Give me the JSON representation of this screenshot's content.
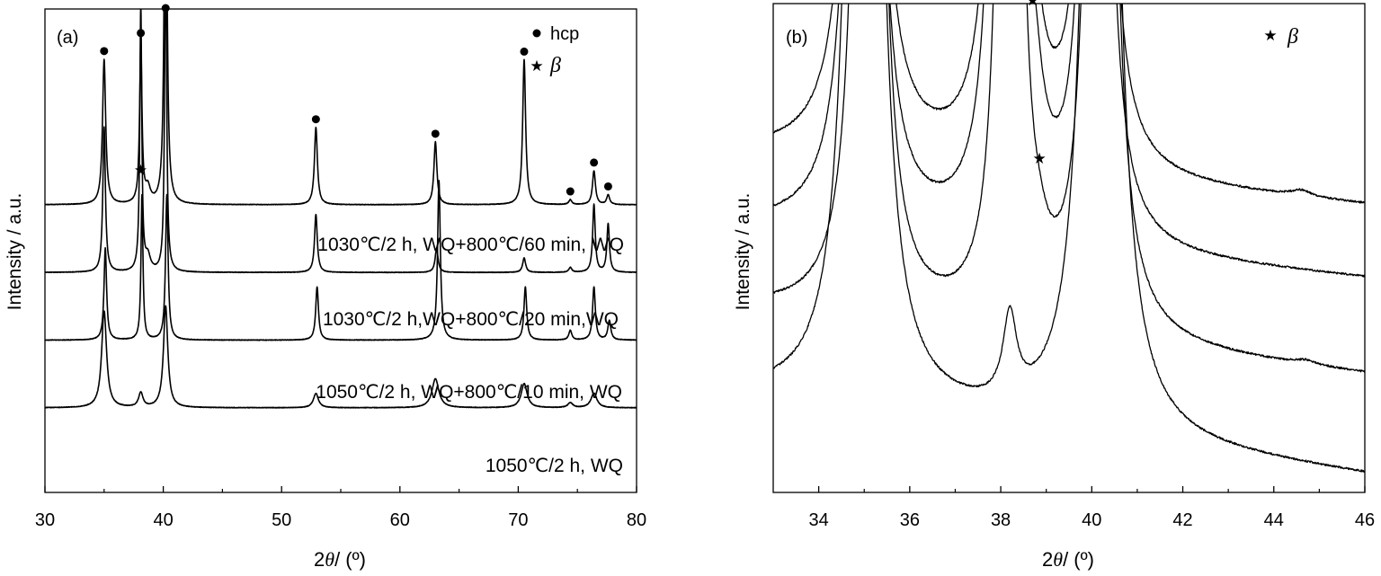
{
  "chart_data": [
    {
      "type": "line",
      "panel_label": "(a)",
      "xlabel": {
        "prefix": "2",
        "theta": "θ",
        "suffix": "/ (º)"
      },
      "ylabel": "Intensity / a.u.",
      "xlim": [
        30,
        80
      ],
      "xticks": [
        "30",
        "40",
        "50",
        "60",
        "70",
        "80"
      ],
      "legend": [
        {
          "marker": "●",
          "text": "hcp"
        },
        {
          "marker": "★",
          "text": "β"
        }
      ],
      "series": [
        {
          "name": "1030℃/2 h, WQ+800℃/60 min, WQ",
          "baseline": 0.405,
          "peaks": [
            {
              "x": 35.0,
              "h": 0.3,
              "w": 0.16,
              "marker": "hcp"
            },
            {
              "x": 38.1,
              "h": 0.33,
              "w": 0.12,
              "marker": "hcp"
            },
            {
              "x": 38.7,
              "h": 0.03,
              "w": 0.25,
              "marker": "beta"
            },
            {
              "x": 40.2,
              "h": 1.0,
              "w": 0.12,
              "marker": "hcp"
            },
            {
              "x": 52.9,
              "h": 0.16,
              "w": 0.15,
              "marker": "hcp"
            },
            {
              "x": 63.0,
              "h": 0.13,
              "w": 0.15,
              "marker": "hcp"
            },
            {
              "x": 70.5,
              "h": 0.3,
              "w": 0.15,
              "marker": "hcp"
            },
            {
              "x": 74.4,
              "h": 0.01,
              "w": 0.15,
              "marker": "hcp"
            },
            {
              "x": 76.4,
              "h": 0.07,
              "w": 0.15,
              "marker": "hcp"
            },
            {
              "x": 77.6,
              "h": 0.02,
              "w": 0.15,
              "marker": "hcp"
            }
          ]
        },
        {
          "name": "1030℃/2 h,WQ+800℃/20 min,WQ",
          "baseline": 0.545,
          "peaks": [
            {
              "x": 35.0,
              "h": 0.3,
              "w": 0.13
            },
            {
              "x": 38.1,
              "h": 0.55,
              "w": 0.1
            },
            {
              "x": 38.7,
              "h": 0.03,
              "w": 0.25
            },
            {
              "x": 40.2,
              "h": 0.7,
              "w": 0.1
            },
            {
              "x": 52.9,
              "h": 0.12,
              "w": 0.14
            },
            {
              "x": 63.1,
              "h": 0.05,
              "w": 0.15
            },
            {
              "x": 70.5,
              "h": 0.03,
              "w": 0.15
            },
            {
              "x": 74.4,
              "h": 0.01,
              "w": 0.15
            },
            {
              "x": 76.4,
              "h": 0.14,
              "w": 0.13
            },
            {
              "x": 77.6,
              "h": 0.1,
              "w": 0.13
            }
          ]
        },
        {
          "name": "1050℃/2 h, WQ+800℃/10 min, WQ",
          "baseline": 0.685,
          "peaks": [
            {
              "x": 35.1,
              "h": 0.19,
              "w": 0.13
            },
            {
              "x": 38.2,
              "h": 0.3,
              "w": 0.1
            },
            {
              "x": 40.3,
              "h": 0.3,
              "w": 0.13
            },
            {
              "x": 53.0,
              "h": 0.11,
              "w": 0.14
            },
            {
              "x": 63.3,
              "h": 0.33,
              "w": 0.14
            },
            {
              "x": 70.6,
              "h": 0.11,
              "w": 0.14
            },
            {
              "x": 74.4,
              "h": 0.02,
              "w": 0.15
            },
            {
              "x": 76.4,
              "h": 0.11,
              "w": 0.14
            },
            {
              "x": 77.7,
              "h": 0.04,
              "w": 0.15
            }
          ]
        },
        {
          "name": "1050℃/2 h, WQ",
          "baseline": 0.825,
          "peaks": [
            {
              "x": 35.0,
              "h": 0.2,
              "w": 0.25
            },
            {
              "x": 38.1,
              "h": 0.03,
              "w": 0.22
            },
            {
              "x": 40.2,
              "h": 0.21,
              "w": 0.22
            },
            {
              "x": 52.9,
              "h": 0.03,
              "w": 0.25
            },
            {
              "x": 63.0,
              "h": 0.06,
              "w": 0.35
            },
            {
              "x": 70.5,
              "h": 0.05,
              "w": 0.3
            },
            {
              "x": 74.4,
              "h": 0.01,
              "w": 0.25
            },
            {
              "x": 76.4,
              "h": 0.03,
              "w": 0.3
            }
          ]
        }
      ]
    },
    {
      "type": "line",
      "panel_label": "(b)",
      "xlabel": {
        "prefix": "2",
        "theta": "θ",
        "suffix": "/ (º)"
      },
      "ylabel": "Intensity / a.u.",
      "xlim": [
        33,
        46
      ],
      "xticks": [
        "34",
        "36",
        "38",
        "40",
        "42",
        "44",
        "46"
      ],
      "legend": [
        {
          "marker": "★",
          "text": "β"
        }
      ],
      "series": [
        {
          "baseline": 0.31,
          "slope": 0.008,
          "peaks": [
            {
              "x": 35.0,
              "h": 5.0,
              "w": 0.18
            },
            {
              "x": 38.1,
              "h": 5.0,
              "w": 0.15
            },
            {
              "x": 38.7,
              "h": 0.17,
              "w": 0.25,
              "marker": "beta"
            },
            {
              "x": 40.1,
              "h": 5.0,
              "w": 0.15
            },
            {
              "x": 44.6,
              "h": 0.012,
              "w": 0.25
            }
          ]
        },
        {
          "baseline": 0.46,
          "slope": 0.008,
          "peaks": [
            {
              "x": 35.0,
              "h": 5.0,
              "w": 0.18
            },
            {
              "x": 38.1,
              "h": 5.0,
              "w": 0.15
            },
            {
              "x": 38.7,
              "h": 0.21,
              "w": 0.25,
              "marker": "beta"
            },
            {
              "x": 40.1,
              "h": 5.0,
              "w": 0.15
            }
          ]
        },
        {
          "baseline": 0.63,
          "slope": 0.01,
          "peaks": [
            {
              "x": 35.1,
              "h": 5.0,
              "w": 0.17
            },
            {
              "x": 38.2,
              "h": 5.0,
              "w": 0.14
            },
            {
              "x": 38.85,
              "h": 0.04,
              "w": 0.22,
              "marker": "beta"
            },
            {
              "x": 40.2,
              "h": 5.0,
              "w": 0.17
            },
            {
              "x": 44.7,
              "h": 0.008,
              "w": 0.25
            }
          ]
        },
        {
          "baseline": 0.81,
          "slope": 0.012,
          "peaks": [
            {
              "x": 35.0,
              "h": 5.0,
              "w": 0.22
            },
            {
              "x": 38.2,
              "h": 0.17,
              "w": 0.18
            },
            {
              "x": 40.2,
              "h": 5.0,
              "w": 0.22
            }
          ]
        }
      ]
    }
  ]
}
